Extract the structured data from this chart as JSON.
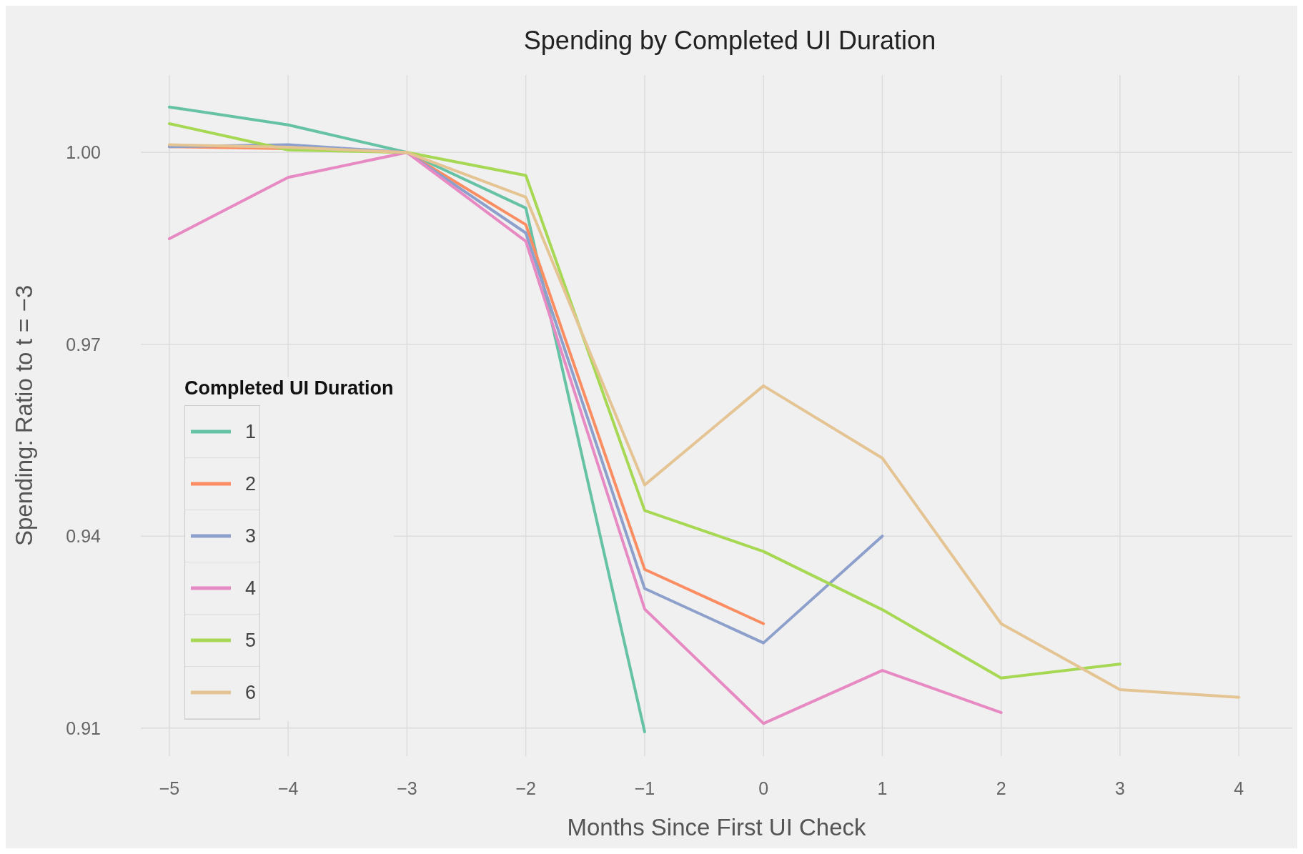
{
  "chart_data": {
    "type": "line",
    "title": "Spending by Completed UI Duration",
    "xlabel": "Months Since First UI Check",
    "ylabel": "Spending: Ratio to t = −3",
    "legend_title": "Completed UI Duration",
    "legend": "left",
    "grid": true,
    "line_style": "solid",
    "x": [
      -5,
      -4,
      -3,
      -2,
      -1,
      0,
      1,
      2,
      3,
      4
    ],
    "xlim": [
      -5.24,
      4.45
    ],
    "xticks": [
      {
        "value": -5,
        "label": "−5"
      },
      {
        "value": -4,
        "label": "−4"
      },
      {
        "value": -3,
        "label": "−3"
      },
      {
        "value": -2,
        "label": "−2"
      },
      {
        "value": -1,
        "label": "−1"
      },
      0,
      1,
      2,
      3,
      4
    ],
    "ylim": [
      0.9056,
      1.0121
    ],
    "yticks": [
      0.91,
      0.94,
      0.97,
      {
        "value": 1,
        "label": "1.00"
      }
    ],
    "series": [
      {
        "name": "1",
        "color": "#66c2a5",
        "values": [
          1.0071,
          1.0043,
          1.0,
          0.9913,
          0.9094,
          null,
          null,
          null,
          null,
          null
        ]
      },
      {
        "name": "2",
        "color": "#fc8d62",
        "values": [
          1.0009,
          1.0006,
          1.0,
          0.9887,
          0.9348,
          0.9263,
          null,
          null,
          null,
          null
        ]
      },
      {
        "name": "3",
        "color": "#8da0cb",
        "values": [
          1.0009,
          1.0012,
          1.0,
          0.9874,
          0.9318,
          0.9233,
          0.94,
          null,
          null,
          null
        ]
      },
      {
        "name": "4",
        "color": "#e78ac3",
        "values": [
          0.9865,
          0.9961,
          1.0,
          0.9861,
          0.9286,
          0.9107,
          0.919,
          0.9124,
          null,
          null
        ]
      },
      {
        "name": "5",
        "color": "#a6d854",
        "values": [
          1.0045,
          1.0004,
          1.0,
          0.9964,
          0.944,
          0.9376,
          0.9285,
          0.9178,
          0.92,
          null
        ]
      },
      {
        "name": "6",
        "color": "#e5c494",
        "values": [
          1.0012,
          1.0008,
          1.0,
          0.993,
          0.948,
          0.9635,
          0.9522,
          0.9263,
          0.916,
          0.9148
        ]
      }
    ]
  }
}
